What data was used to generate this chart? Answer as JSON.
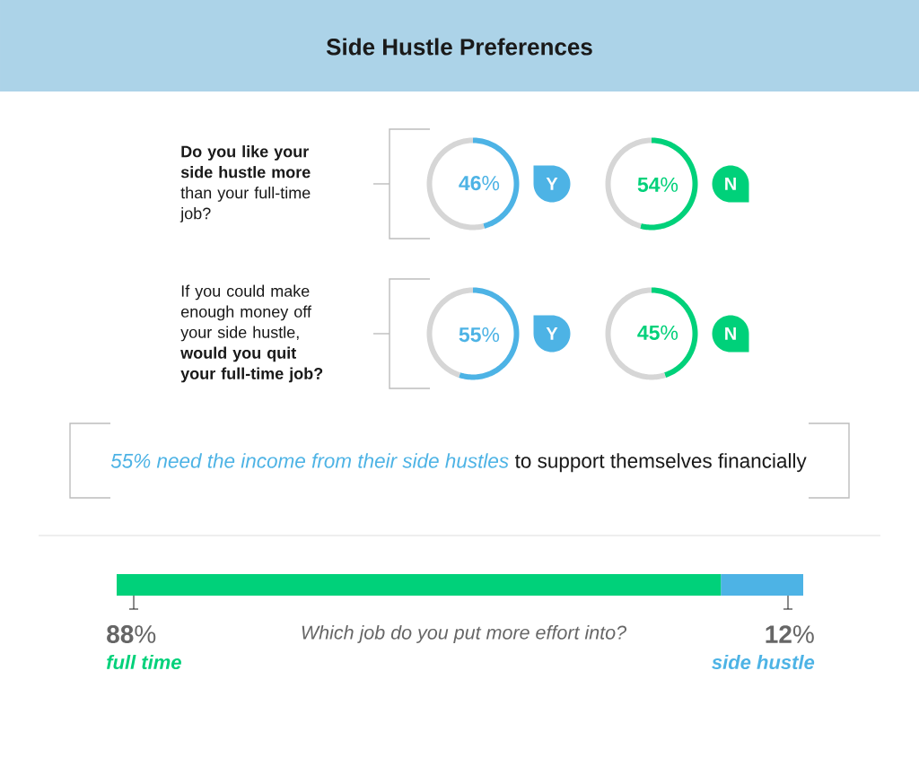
{
  "chart_data": [
    {
      "type": "other",
      "title": "Side Hustle Preferences"
    },
    {
      "type": "donut",
      "title": "**Do you like your side hustle more** than your full-time job?",
      "categories": [
        "Y",
        null
      ],
      "values": [
        46,
        54
      ],
      "colors": [
        "#4db3e5",
        "#d6d6d6"
      ],
      "value_labels": [
        "**46**%",
        null
      ]
    },
    {
      "type": "donut",
      "categories": [
        "N",
        null
      ],
      "values": [
        54,
        46
      ],
      "colors": [
        "#00d17a",
        "#d6d6d6"
      ],
      "value_labels": [
        "**54**%",
        null
      ]
    },
    {
      "type": "donut",
      "title": "If you could make enough money off your side hustle, **would you quit your full-time job?**",
      "categories": [
        "Y",
        null
      ],
      "values": [
        55,
        45
      ],
      "colors": [
        "#4db3e5",
        "#d6d6d6"
      ],
      "value_labels": [
        "**55**%",
        null
      ]
    },
    {
      "type": "donut",
      "categories": [
        "N",
        null
      ],
      "values": [
        45,
        55
      ],
      "colors": [
        "#00d17a",
        "#d6d6d6"
      ],
      "value_labels": [
        "**45**%",
        null
      ]
    },
    {
      "type": "other",
      "annotations": [
        "55% need the income from their side hustles",
        "to support themselves financially"
      ]
    },
    {
      "type": "bar",
      "orientation": "horizontal",
      "stacked": true,
      "title": "Which job do you put more effort into?",
      "categories": [
        null
      ],
      "series": [
        {
          "name": "full time",
          "color": "#00d17a",
          "values": [
            88
          ],
          "value_labels": [
            "**88**%"
          ]
        },
        {
          "name": "side hustle",
          "color": "#4db3e5",
          "values": [
            12
          ],
          "value_labels": [
            "**12**%"
          ]
        }
      ],
      "xlim": [
        0,
        100
      ],
      "tick_labels": false
    }
  ]
}
